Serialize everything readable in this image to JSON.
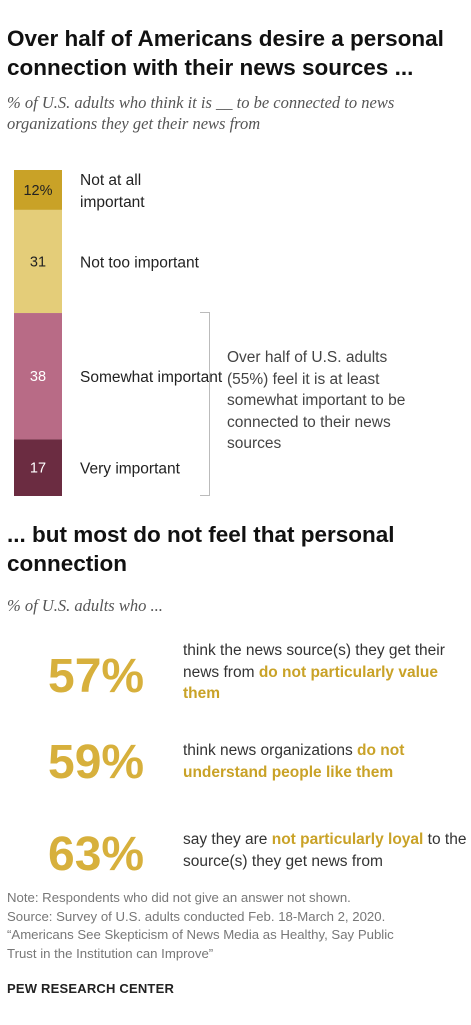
{
  "section1": {
    "title": "Over half of Americans desire a personal connection with their news sources ...",
    "subtitle": "% of U.S. adults who think it is __ to be connected to news organizations they get their news from",
    "annotation": "Over half of U.S. adults (55%) feel it is at least somewhat important to be connected to their news sources"
  },
  "chart_data": {
    "type": "bar",
    "orientation": "stacked-vertical",
    "categories": [
      "Not at all important",
      "Not too important",
      "Somewhat important",
      "Very important"
    ],
    "values": [
      12,
      31,
      38,
      17
    ],
    "value_labels": [
      "12%",
      "31",
      "38",
      "17"
    ],
    "colors": [
      "#c9a227",
      "#e4cd79",
      "#b86b86",
      "#6b2c41"
    ],
    "label_colors": [
      "#222222",
      "#222222",
      "#ffffff",
      "#ffffff"
    ]
  },
  "section2": {
    "title": "... but most do not feel that personal connection",
    "subtitle": "% of U.S. adults who ...",
    "stats": [
      {
        "value": "57%",
        "text": "think the news source(s) they get their news from ",
        "highlight": "do not particularly value them",
        "after": ""
      },
      {
        "value": "59%",
        "text": "think news organizations ",
        "highlight": "do not understand people like them",
        "after": ""
      },
      {
        "value": "63%",
        "text": "say they are ",
        "highlight": "not particularly loyal",
        "after": " to the source(s) they get news from"
      }
    ]
  },
  "notes": [
    "Note: Respondents who did not give an answer not shown.",
    "Source: Survey of U.S. adults conducted Feb. 18-March 2, 2020.",
    "“Americans See Skepticism of News Media as Healthy, Say Public",
    "Trust in the Institution can Improve”"
  ],
  "brand": "PEW RESEARCH CENTER"
}
